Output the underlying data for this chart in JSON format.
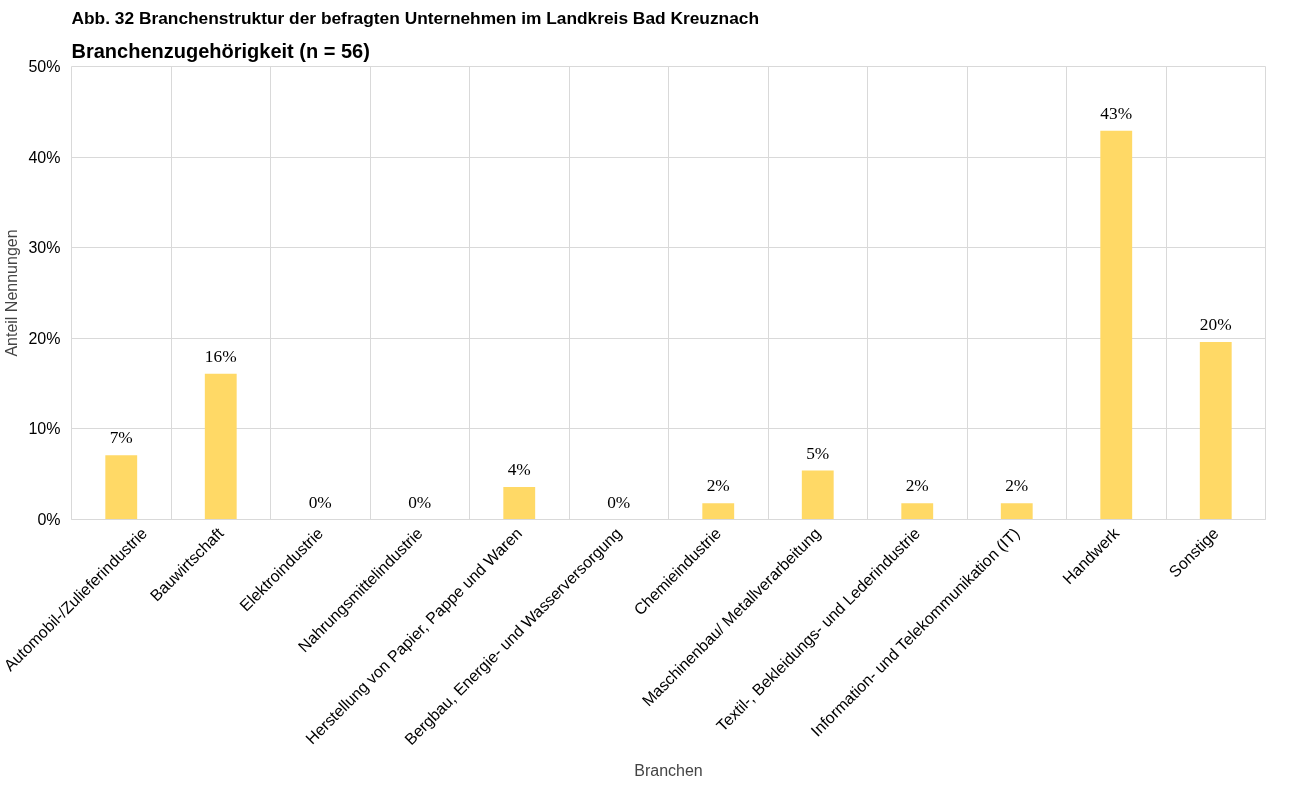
{
  "chart_data": {
    "type": "bar",
    "title": "Abb. 32 Branchenstruktur der befragten Unternehmen im Landkreis Bad Kreuznach",
    "subtitle": "Branchenzugehörigkeit (n = 56)",
    "xlabel": "Branchen",
    "ylabel": "Anteil Nennungen",
    "categories": [
      "Automobil-/Zulieferindustrie",
      "Bauwirtschaft",
      "Elektroindustrie",
      "Nahrungsmittelindustrie",
      "Herstellung von Papier, Pappe und Waren",
      "Bergbau, Energie- und Wasserversorgung",
      "Chemieindustrie",
      "Maschinenbau/ Metallverarbeitung",
      "Textil-, Bekleidungs- und Lederindustrie",
      "Information- und Telekommunikation (IT)",
      "Handwerk",
      "Sonstige"
    ],
    "values": [
      7.1,
      16.1,
      0,
      0,
      3.6,
      0,
      1.8,
      5.4,
      1.8,
      1.8,
      42.9,
      19.6
    ],
    "value_labels": [
      "7%",
      "16%",
      "0%",
      "0%",
      "4%",
      "0%",
      "2%",
      "5%",
      "2%",
      "2%",
      "43%",
      "20%"
    ],
    "color": "#ffd966",
    "ylim": [
      0,
      50
    ],
    "yticks": [
      {
        "value": 0,
        "label": "0%"
      },
      {
        "value": 10,
        "label": "10%"
      },
      {
        "value": 20,
        "label": "20%"
      },
      {
        "value": 30,
        "label": "30%"
      },
      {
        "value": 40,
        "label": "40%"
      },
      {
        "value": 50,
        "label": "50%"
      }
    ],
    "grid": true
  }
}
